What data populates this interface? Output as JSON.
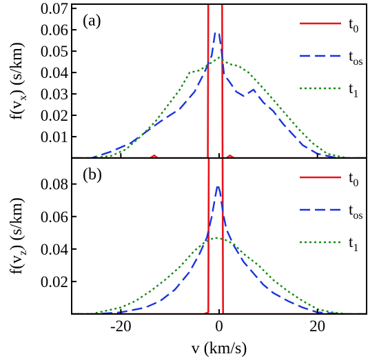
{
  "chart_data": [
    {
      "type": "line",
      "panel_label": "(a)",
      "ylabel": "f(v",
      "ylabel_sub": "x",
      "ylabel_suffix": ") (s/km)",
      "xlabel": "",
      "xlim": [
        -30,
        30
      ],
      "ylim": [
        0,
        0.072
      ],
      "xticks": [
        -20,
        0,
        20
      ],
      "xtick_labels": [
        "",
        "",
        ""
      ],
      "yticks": [
        0.01,
        0.02,
        0.03,
        0.04,
        0.05,
        0.06,
        0.07
      ],
      "ytick_labels": [
        "0.01",
        "0.02",
        "0.03",
        "0.04",
        "0.05",
        "0.06",
        "0.07"
      ],
      "legend_position": "top-right",
      "series": [
        {
          "name": "t",
          "name_sub": "0",
          "color": "#e8141c",
          "style": "solid",
          "x": [
            -30,
            -14,
            -13.2,
            -12.5,
            -2.3,
            -2.2,
            0.6,
            0.7,
            1.5,
            2.2,
            3,
            30
          ],
          "y": [
            0,
            0,
            0.0012,
            0,
            0,
            0.075,
            0.075,
            0,
            0,
            0.0012,
            0,
            0
          ]
        },
        {
          "name": "t",
          "name_sub": "os",
          "color": "#1a33dd",
          "style": "dashed",
          "x": [
            -30,
            -26,
            -22,
            -18,
            -15,
            -12,
            -8,
            -5,
            -3,
            -1.5,
            -0.8,
            0,
            0.5,
            1,
            2,
            3.5,
            5,
            7,
            9,
            11,
            13,
            15,
            17,
            20,
            24,
            30
          ],
          "y": [
            0,
            0,
            0.003,
            0.007,
            0.012,
            0.017,
            0.023,
            0.031,
            0.04,
            0.048,
            0.059,
            0.058,
            0.05,
            0.039,
            0.036,
            0.031,
            0.029,
            0.032,
            0.026,
            0.022,
            0.016,
            0.011,
            0.006,
            0.002,
            0,
            0
          ]
        },
        {
          "name": "t",
          "name_sub": "1",
          "color": "#168a16",
          "style": "dotted",
          "x": [
            -30,
            -26,
            -22,
            -19,
            -16,
            -13,
            -10,
            -8,
            -6,
            -4,
            -2,
            0,
            2,
            4,
            6,
            8,
            10,
            13,
            16,
            19,
            22,
            26,
            30
          ],
          "y": [
            0,
            0,
            0.001,
            0.004,
            0.01,
            0.017,
            0.026,
            0.032,
            0.04,
            0.041,
            0.044,
            0.047,
            0.044,
            0.043,
            0.04,
            0.035,
            0.03,
            0.022,
            0.014,
            0.007,
            0.002,
            0,
            0
          ]
        }
      ]
    },
    {
      "type": "line",
      "panel_label": "(b)",
      "ylabel": "f(v",
      "ylabel_sub": "z",
      "ylabel_suffix": ") (s/km)",
      "xlabel": "v (km/s)",
      "xlim": [
        -30,
        30
      ],
      "ylim": [
        0,
        0.096
      ],
      "xticks": [
        -20,
        0,
        20
      ],
      "xtick_labels": [
        "-20",
        "0",
        "20"
      ],
      "yticks": [
        0.02,
        0.04,
        0.06,
        0.08
      ],
      "ytick_labels": [
        "0.02",
        "0.04",
        "0.06",
        "0.08"
      ],
      "legend_position": "top-right",
      "series": [
        {
          "name": "t",
          "name_sub": "0",
          "color": "#e8141c",
          "style": "solid",
          "x": [
            -30,
            -3,
            -2.2,
            -2.1,
            0.7,
            0.8,
            30
          ],
          "y": [
            0,
            0,
            0.001,
            0.1,
            0.1,
            0,
            0
          ]
        },
        {
          "name": "t",
          "name_sub": "os",
          "color": "#1a33dd",
          "style": "dashed",
          "x": [
            -30,
            -25,
            -20,
            -15,
            -12,
            -9,
            -6,
            -4,
            -2.5,
            -1.5,
            -0.8,
            -0.3,
            0.2,
            0.8,
            1.5,
            3,
            5,
            7,
            9,
            11,
            14,
            17,
            20,
            25,
            30
          ],
          "y": [
            0,
            0,
            0.001,
            0.004,
            0.008,
            0.015,
            0.026,
            0.037,
            0.047,
            0.06,
            0.072,
            0.08,
            0.075,
            0.062,
            0.052,
            0.042,
            0.032,
            0.025,
            0.018,
            0.013,
            0.008,
            0.004,
            0.001,
            0,
            0
          ]
        },
        {
          "name": "t",
          "name_sub": "1",
          "color": "#168a16",
          "style": "dotted",
          "x": [
            -30,
            -26,
            -23,
            -20,
            -17,
            -14,
            -11,
            -8,
            -5,
            -3,
            -1,
            1,
            3,
            5,
            8,
            11,
            14,
            17,
            20,
            23,
            26,
            30
          ],
          "y": [
            0,
            0,
            0.002,
            0.004,
            0.008,
            0.014,
            0.021,
            0.029,
            0.039,
            0.044,
            0.047,
            0.046,
            0.043,
            0.037,
            0.03,
            0.021,
            0.014,
            0.008,
            0.003,
            0.001,
            0,
            0
          ]
        }
      ]
    }
  ]
}
